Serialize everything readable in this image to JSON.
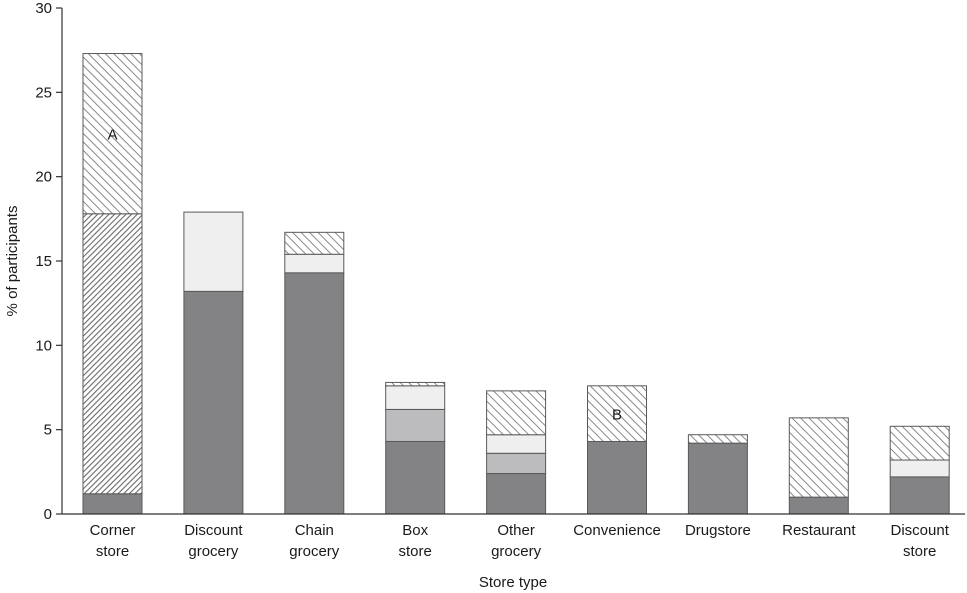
{
  "chart_data": {
    "type": "bar",
    "stacked": true,
    "title": "",
    "xlabel": "Store type",
    "ylabel": "% of participants",
    "ylim": [
      0,
      30
    ],
    "yticks": [
      0,
      5,
      10,
      15,
      20,
      25,
      30
    ],
    "grid": false,
    "legend": "none",
    "categories": [
      [
        "Corner",
        "store"
      ],
      [
        "Discount",
        "grocery"
      ],
      [
        "Chain",
        "grocery"
      ],
      [
        "Box",
        "store"
      ],
      [
        "Other",
        "grocery"
      ],
      [
        "Convenience"
      ],
      [
        "Drugstore"
      ],
      [
        "Restaurant"
      ],
      [
        "Discount",
        "store"
      ]
    ],
    "series": [
      {
        "fill": "dark-gray",
        "values": [
          1.2,
          13.2,
          14.3,
          4.3,
          2.4,
          4.3,
          4.2,
          1.0,
          2.2
        ]
      },
      {
        "fill": "medium-gray",
        "values": [
          0,
          0,
          0,
          1.9,
          1.2,
          0,
          0,
          0,
          0
        ]
      },
      {
        "fill": "light-gray",
        "values": [
          0,
          4.7,
          1.1,
          1.4,
          1.1,
          0,
          0,
          0,
          1.0
        ]
      },
      {
        "fill": "dense-back-hatch",
        "values": [
          16.6,
          0,
          0,
          0,
          0,
          0,
          0,
          0,
          0
        ]
      },
      {
        "fill": "diagonal-hatch",
        "values": [
          9.5,
          0,
          1.3,
          0.2,
          2.6,
          3.3,
          0.5,
          4.7,
          2.0
        ]
      }
    ],
    "annotations": [
      {
        "text": "A",
        "category_index": 0,
        "y": 22.5
      },
      {
        "text": "B",
        "category_index": 5,
        "y": 5.9
      }
    ],
    "colors": {
      "dark-gray": "#838386",
      "medium-gray": "#bcbcbf",
      "light-gray": "#efefef",
      "outline": "#5a5a5a",
      "axis": "#333333"
    }
  }
}
